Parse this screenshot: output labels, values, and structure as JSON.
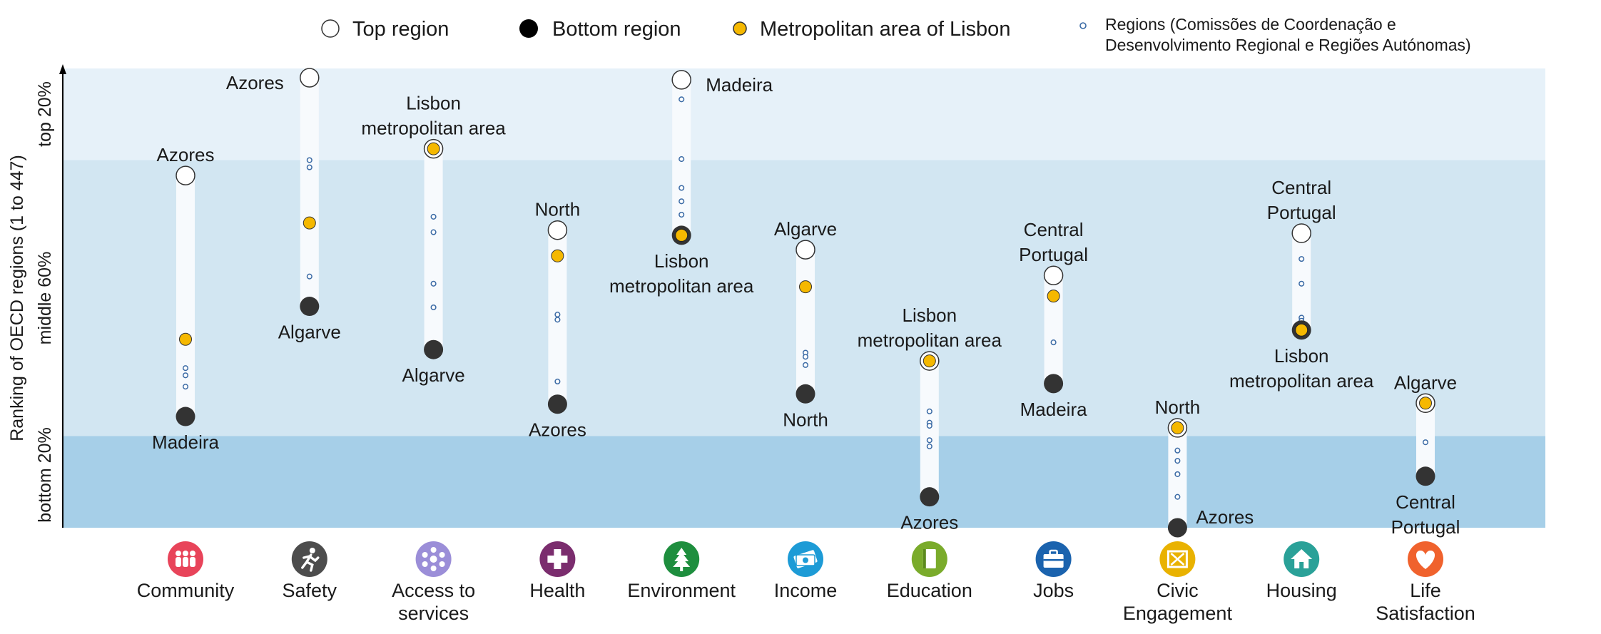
{
  "legend": {
    "top": "Top region",
    "bottom": "Bottom region",
    "lisbon": "Metropolitan area of Lisbon",
    "regions_line1": "Regions (Comissões de Coordenação e",
    "regions_line2": "Desenvolvimento Regional e Regiões Autónomas)"
  },
  "y_axis": {
    "label": "Ranking of OECD regions (1 to 447)",
    "bands": [
      "top 20%",
      "middle 60%",
      "bottom 20%"
    ]
  },
  "colors": {
    "band_top": "#e6f1f9",
    "band_middle": "#d2e6f2",
    "band_bottom": "#a6cfe8",
    "bar": "#f7fafd",
    "lisbon": "#f5b800",
    "bottom_marker": "#333333",
    "small_dot": "#3a6aa5"
  },
  "chart_data": {
    "type": "scatter",
    "title": "",
    "xlabel": "",
    "ylabel": "Ranking of OECD regions (1 to 447)",
    "ylim": [
      447,
      1
    ],
    "band_limits_rank": [
      90,
      358
    ],
    "categories": [
      {
        "name": "Community",
        "label_lines": [
          "Community"
        ],
        "icon": "people-icon",
        "icon_color": "#e8445a",
        "top": 105,
        "top_lines": [
          "Azores"
        ],
        "bottom": 339,
        "bottom_lines": [
          "Madeira"
        ],
        "lisbon": 264,
        "others": [
          292,
          299,
          310
        ],
        "lisbon_at": ""
      },
      {
        "name": "Safety",
        "label_lines": [
          "Safety"
        ],
        "icon": "running-figure-icon",
        "icon_color": "#4d4d4d",
        "top": 10,
        "top_lines": [
          "Azores"
        ],
        "bottom": 232,
        "bottom_lines": [
          "Algarve"
        ],
        "lisbon": 151,
        "others": [
          90,
          97,
          203
        ],
        "lisbon_at": ""
      },
      {
        "name": "Access to services",
        "label_lines": [
          "Access to",
          "services"
        ],
        "icon": "network-icon",
        "icon_color": "#9b8ed8",
        "top": 79,
        "top_lines": [
          "Lisbon",
          "metropolitan area"
        ],
        "bottom": 274,
        "bottom_lines": [
          "Algarve"
        ],
        "lisbon": 79,
        "others": [
          145,
          160,
          210,
          233
        ],
        "lisbon_at": "top"
      },
      {
        "name": "Health",
        "label_lines": [
          "Health"
        ],
        "icon": "medical-cross-icon",
        "icon_color": "#7b2d6e",
        "top": 158,
        "top_lines": [
          "North"
        ],
        "bottom": 327,
        "bottom_lines": [
          "Azores"
        ],
        "lisbon": 183,
        "others": [
          240,
          245,
          305
        ],
        "lisbon_at": ""
      },
      {
        "name": "Environment",
        "label_lines": [
          "Environment"
        ],
        "icon": "tree-icon",
        "icon_color": "#1e8e3e",
        "top": 12,
        "top_lines": [
          "Madeira"
        ],
        "bottom": 163,
        "bottom_lines": [
          "Lisbon",
          "metropolitan area"
        ],
        "lisbon": 163,
        "others": [
          31,
          89,
          117,
          130,
          143
        ],
        "lisbon_at": "bottom"
      },
      {
        "name": "Income",
        "label_lines": [
          "Income"
        ],
        "icon": "banknote-icon",
        "icon_color": "#1d9bd6",
        "top": 177,
        "top_lines": [
          "Algarve"
        ],
        "bottom": 317,
        "bottom_lines": [
          "North"
        ],
        "lisbon": 213,
        "others": [
          277,
          281,
          289
        ],
        "lisbon_at": ""
      },
      {
        "name": "Education",
        "label_lines": [
          "Education"
        ],
        "icon": "book-icon",
        "icon_color": "#7aab2b",
        "top": 285,
        "top_lines": [
          "Lisbon",
          "metropolitan area"
        ],
        "bottom": 417,
        "bottom_lines": [
          "Azores"
        ],
        "lisbon": 285,
        "others": [
          334,
          345,
          348,
          362,
          368
        ],
        "lisbon_at": "top"
      },
      {
        "name": "Jobs",
        "label_lines": [
          "Jobs"
        ],
        "icon": "briefcase-icon",
        "icon_color": "#1b63ae",
        "top": 202,
        "top_lines": [
          "Central",
          "Portugal"
        ],
        "bottom": 307,
        "bottom_lines": [
          "Madeira"
        ],
        "lisbon": 222,
        "others": [
          267
        ],
        "lisbon_at": ""
      },
      {
        "name": "Civic Engagement",
        "label_lines": [
          "Civic",
          "Engagement"
        ],
        "icon": "ballot-icon",
        "icon_color": "#e9b200",
        "top": 350,
        "top_lines": [
          "North"
        ],
        "bottom": 447,
        "bottom_lines": [
          "Azores"
        ],
        "lisbon": 350,
        "others": [
          372,
          382,
          395,
          417
        ],
        "lisbon_at": "top"
      },
      {
        "name": "Housing",
        "label_lines": [
          "Housing"
        ],
        "icon": "house-icon",
        "icon_color": "#2aa198",
        "top": 161,
        "top_lines": [
          "Central",
          "Portugal"
        ],
        "bottom": 255,
        "bottom_lines": [
          "Lisbon",
          "metropolitan area"
        ],
        "lisbon": 255,
        "others": [
          186,
          210,
          243,
          246
        ],
        "lisbon_at": "bottom"
      },
      {
        "name": "Life Satisfaction",
        "label_lines": [
          "Life",
          "Satisfaction"
        ],
        "icon": "heart-icon",
        "icon_color": "#f0622d",
        "top": 326,
        "top_lines": [
          "Algarve"
        ],
        "bottom": 397,
        "bottom_lines": [
          "Central",
          "Portugal"
        ],
        "lisbon": 326,
        "others": [
          364
        ],
        "lisbon_at": "top"
      }
    ]
  }
}
